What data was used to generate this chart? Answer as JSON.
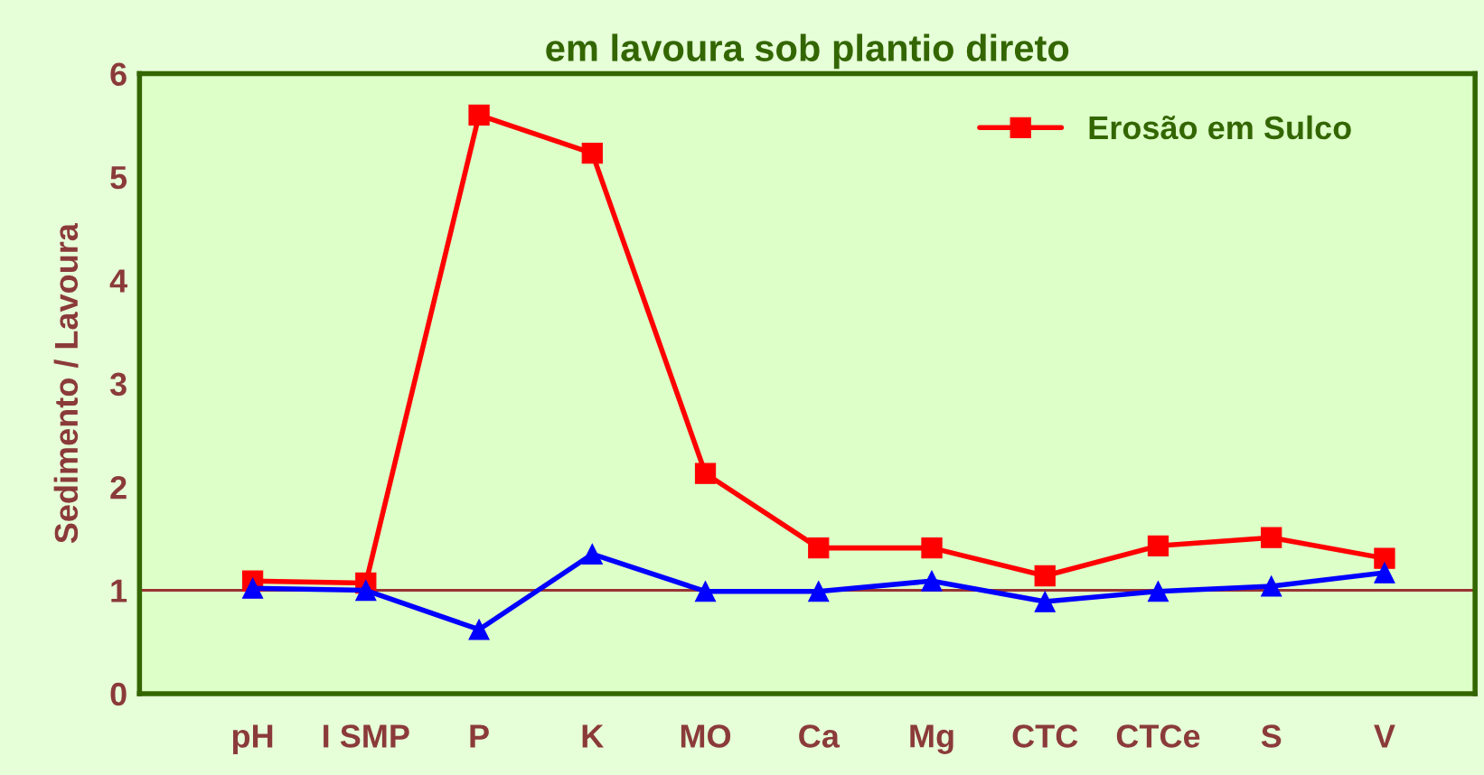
{
  "chart_data": {
    "type": "line",
    "title": "em lavoura sob plantio direto",
    "ylabel": "Sedimento / Lavoura",
    "categories": [
      "pH",
      "I SMP",
      "P",
      "K",
      "MO",
      "Ca",
      "Mg",
      "CTC",
      "CTCe",
      "S",
      "V"
    ],
    "series": [
      {
        "name": "Erosão em Sulco",
        "color": "#ff0000",
        "marker": "square",
        "values": [
          1.09,
          1.07,
          5.6,
          5.23,
          2.13,
          1.41,
          1.41,
          1.14,
          1.43,
          1.51,
          1.31
        ]
      },
      {
        "color": "#0000ff",
        "marker": "triangle",
        "values": [
          1.02,
          1.0,
          0.62,
          1.35,
          0.99,
          0.99,
          1.09,
          0.89,
          0.99,
          1.04,
          1.17
        ]
      }
    ],
    "ylim": [
      0,
      6
    ],
    "yticks": [
      0,
      1,
      2,
      3,
      4,
      5,
      6
    ],
    "grid": false,
    "legend": "top right",
    "ref_lines": [
      {
        "axis": "y",
        "value": 1,
        "color": "#993333"
      }
    ]
  }
}
